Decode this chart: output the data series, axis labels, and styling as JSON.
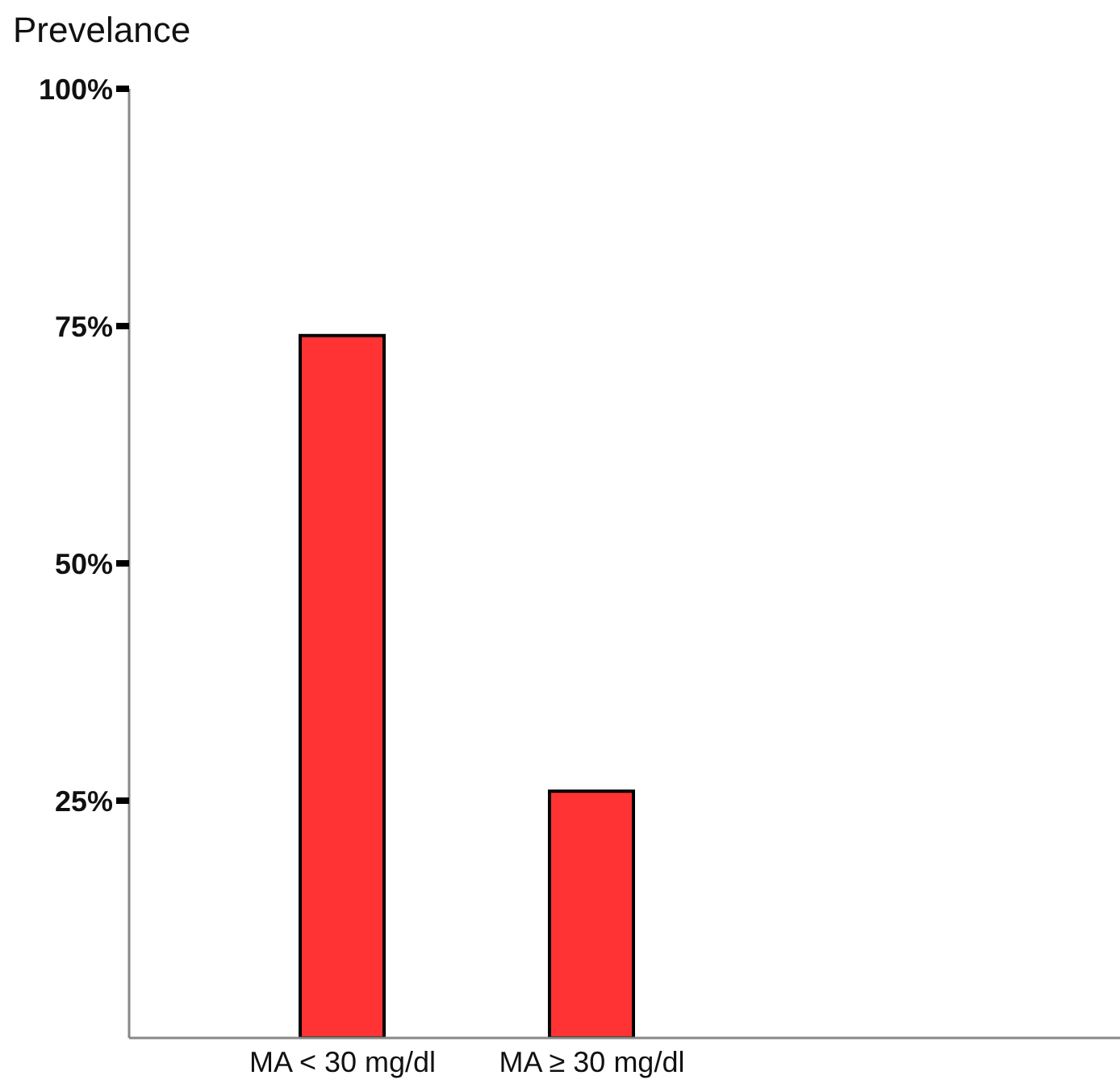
{
  "chart_data": {
    "type": "bar",
    "ylabel": "Prevelance",
    "categories": [
      "MA < 30 mg/dl",
      "MA ≥ 30 mg/dl"
    ],
    "values": [
      74,
      26
    ],
    "color": "#ff3333",
    "ylim": [
      0,
      100
    ],
    "yticks": [
      {
        "value": 25,
        "label": "25%"
      },
      {
        "value": 50,
        "label": "50%"
      },
      {
        "value": 75,
        "label": "75%"
      },
      {
        "value": 100,
        "label": "100%"
      }
    ],
    "grid": false
  }
}
